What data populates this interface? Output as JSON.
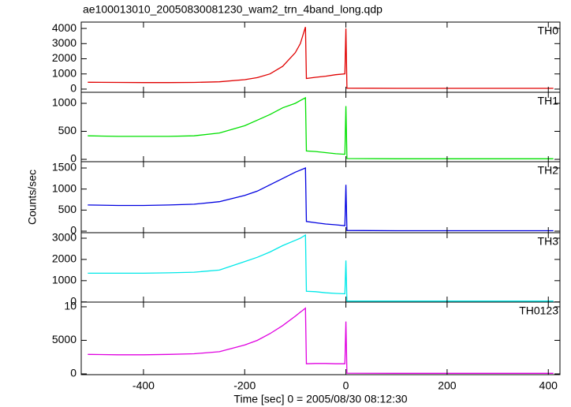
{
  "chart_data": [
    {
      "type": "line",
      "title": "ae100013010_20050830081230_wam2_trn_4band_long.qdp",
      "x": [
        -510,
        -450,
        -400,
        -350,
        -300,
        -250,
        -200,
        -175,
        -150,
        -125,
        -100,
        -90,
        -80,
        -78,
        -60,
        -40,
        -20,
        -2,
        0,
        2,
        100,
        200,
        300,
        410
      ],
      "series": [
        {
          "name": "TH0",
          "color": "#e00000",
          "values": [
            450,
            440,
            430,
            430,
            440,
            480,
            620,
            760,
            1000,
            1500,
            2400,
            3000,
            4100,
            700,
            780,
            850,
            950,
            1000,
            4000,
            60,
            50,
            50,
            50,
            50
          ]
        }
      ],
      "xlim": [
        -523,
        423
      ],
      "xticks": [
        -400,
        -200,
        0,
        200,
        400
      ],
      "ylim": [
        -210,
        4420
      ],
      "yticks": [
        0,
        1000,
        2000,
        3000,
        4000
      ]
    },
    {
      "type": "line",
      "x": [
        -510,
        -450,
        -400,
        -350,
        -300,
        -250,
        -200,
        -175,
        -150,
        -125,
        -100,
        -90,
        -80,
        -78,
        -60,
        -40,
        -20,
        -2,
        0,
        2,
        100,
        200,
        300,
        410
      ],
      "series": [
        {
          "name": "TH1",
          "color": "#00e000",
          "values": [
            420,
            410,
            410,
            410,
            420,
            470,
            600,
            700,
            800,
            920,
            1000,
            1050,
            1100,
            150,
            140,
            120,
            100,
            90,
            950,
            15,
            10,
            10,
            10,
            10
          ]
        }
      ],
      "xlim": [
        -523,
        423
      ],
      "xticks": [
        -400,
        -200,
        0,
        200,
        400
      ],
      "ylim": [
        -42,
        1197
      ],
      "yticks": [
        0,
        500,
        1000
      ]
    },
    {
      "type": "line",
      "ylabel": "Counts/sec",
      "x": [
        -510,
        -450,
        -400,
        -350,
        -300,
        -250,
        -200,
        -175,
        -150,
        -125,
        -100,
        -90,
        -80,
        -78,
        -60,
        -40,
        -20,
        -2,
        0,
        2,
        100,
        200,
        300,
        410
      ],
      "series": [
        {
          "name": "TH2",
          "color": "#0000e0",
          "values": [
            620,
            610,
            610,
            620,
            640,
            700,
            850,
            950,
            1100,
            1250,
            1400,
            1450,
            1500,
            230,
            200,
            170,
            150,
            130,
            1100,
            15,
            10,
            10,
            10,
            10
          ]
        }
      ],
      "xlim": [
        -523,
        423
      ],
      "xticks": [
        -400,
        -200,
        0,
        200,
        400
      ],
      "ylim": [
        -37,
        1650
      ],
      "yticks": [
        0,
        500,
        1000,
        1500
      ]
    },
    {
      "type": "line",
      "x": [
        -510,
        -450,
        -400,
        -350,
        -300,
        -250,
        -200,
        -175,
        -150,
        -125,
        -100,
        -90,
        -80,
        -78,
        -60,
        -40,
        -20,
        -2,
        0,
        2,
        100,
        200,
        300,
        410
      ],
      "series": [
        {
          "name": "TH3",
          "color": "#00e8e8",
          "values": [
            1350,
            1350,
            1350,
            1370,
            1400,
            1500,
            1900,
            2100,
            2350,
            2650,
            2900,
            3000,
            3150,
            500,
            480,
            430,
            400,
            380,
            1950,
            40,
            40,
            40,
            40,
            40
          ]
        }
      ],
      "xlim": [
        -523,
        423
      ],
      "xticks": [
        -400,
        -200,
        0,
        200,
        400
      ],
      "ylim": [
        -10,
        3260
      ],
      "yticks": [
        0,
        1000,
        2000,
        3000
      ]
    },
    {
      "type": "line",
      "xlabel": "Time [sec] 0 = 2005/08/30 08:12:30",
      "x": [
        -510,
        -450,
        -400,
        -350,
        -300,
        -250,
        -200,
        -175,
        -150,
        -125,
        -100,
        -90,
        -80,
        -78,
        -60,
        -40,
        -20,
        -2,
        0,
        2,
        100,
        200,
        300,
        410
      ],
      "series": [
        {
          "name": "TH0123",
          "color": "#e000e0",
          "values": [
            2900,
            2850,
            2850,
            2900,
            3000,
            3300,
            4300,
            5000,
            6000,
            7200,
            8600,
            9200,
            9800,
            1500,
            1550,
            1550,
            1500,
            1500,
            7800,
            100,
            80,
            80,
            80,
            80
          ]
        }
      ],
      "xlim": [
        -523,
        423
      ],
      "xticks": [
        -400,
        -200,
        0,
        200,
        400
      ],
      "ylim": [
        -118,
        10700
      ],
      "yticks": [
        0,
        5000,
        {
          "value": 10000,
          "label": "10"
        }
      ]
    }
  ]
}
